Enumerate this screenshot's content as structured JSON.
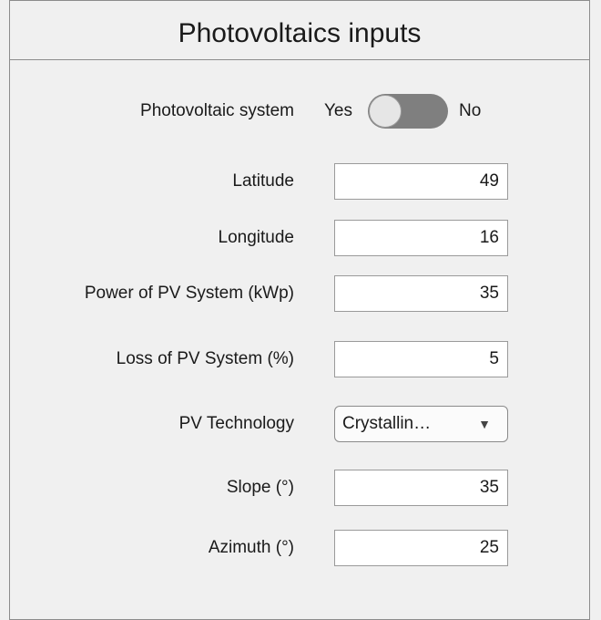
{
  "header": {
    "title": "Photovoltaics inputs"
  },
  "toggle": {
    "label": "Photovoltaic system",
    "on_label": "Yes",
    "off_label": "No"
  },
  "fields": [
    {
      "label": "Latitude",
      "value": 49
    },
    {
      "label": "Longitude",
      "value": 16
    },
    {
      "label": "Power of PV System (kWp)",
      "value": 35
    },
    {
      "label": "Loss of PV System (%)",
      "value": 5
    },
    {
      "label": "PV Technology",
      "value": "Crystallin…"
    },
    {
      "label": "Slope (°)",
      "value": 35
    },
    {
      "label": "Azimuth (°)",
      "value": 25
    }
  ]
}
